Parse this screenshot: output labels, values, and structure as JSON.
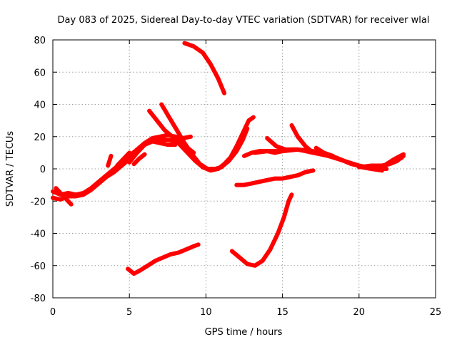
{
  "chart_data": {
    "type": "line",
    "title": "Day 083 of 2025, Sidereal Day-to-day VTEC variation (SDTVAR) for receiver wlal",
    "xlabel": "GPS time / hours",
    "ylabel": "SDTVAR / TECUs",
    "xlim": [
      0,
      25
    ],
    "ylim": [
      -80,
      80
    ],
    "xticks": [
      0,
      5,
      10,
      15,
      20,
      25
    ],
    "yticks": [
      -80,
      -60,
      -40,
      -20,
      0,
      20,
      40,
      60,
      80
    ],
    "grid": true,
    "legend": "none",
    "color": "#ff0000",
    "series": [
      {
        "points": [
          [
            0,
            -14
          ],
          [
            0.5,
            -16
          ],
          [
            1,
            -15
          ],
          [
            1.5,
            -16
          ],
          [
            2,
            -15
          ],
          [
            2.5,
            -12
          ],
          [
            3,
            -8
          ],
          [
            3.5,
            -4
          ],
          [
            4,
            0
          ],
          [
            4.5,
            4
          ],
          [
            5,
            8
          ],
          [
            5.5,
            12
          ]
        ]
      },
      {
        "points": [
          [
            0,
            -18
          ],
          [
            0.5,
            -19
          ],
          [
            1,
            -17
          ],
          [
            1.5,
            -17
          ],
          [
            2,
            -16
          ],
          [
            2.5,
            -13
          ],
          [
            3,
            -9
          ],
          [
            3.5,
            -5
          ],
          [
            4,
            -2
          ],
          [
            4.5,
            2
          ],
          [
            5,
            6
          ]
        ]
      },
      {
        "points": [
          [
            0.2,
            -12
          ],
          [
            0.7,
            -17
          ],
          [
            1.2,
            -22
          ]
        ]
      },
      {
        "points": [
          [
            3.6,
            2
          ],
          [
            3.8,
            8
          ]
        ]
      },
      {
        "points": [
          [
            4.2,
            2
          ],
          [
            4.6,
            6
          ],
          [
            5,
            10
          ]
        ]
      },
      {
        "points": [
          [
            5,
            4
          ],
          [
            5.5,
            10
          ],
          [
            6,
            15
          ],
          [
            6.5,
            17
          ],
          [
            7,
            16
          ],
          [
            7.5,
            15
          ],
          [
            8,
            15
          ]
        ]
      },
      {
        "points": [
          [
            5.5,
            12
          ],
          [
            6,
            16
          ],
          [
            6.5,
            19
          ],
          [
            7,
            20
          ],
          [
            7.5,
            21
          ],
          [
            8,
            20
          ],
          [
            8.5,
            19
          ],
          [
            9,
            20
          ]
        ]
      },
      {
        "points": [
          [
            6.2,
            17
          ],
          [
            6.8,
            18
          ],
          [
            7.5,
            18
          ],
          [
            8.2,
            17
          ],
          [
            8.8,
            13
          ],
          [
            9.2,
            10
          ]
        ]
      },
      {
        "points": [
          [
            5.3,
            3
          ],
          [
            5.6,
            6
          ],
          [
            6,
            9
          ]
        ]
      },
      {
        "points": [
          [
            6.3,
            36
          ],
          [
            6.8,
            30
          ],
          [
            7.3,
            24
          ],
          [
            7.8,
            20
          ],
          [
            8.3,
            15
          ],
          [
            8.8,
            10
          ],
          [
            9.3,
            5
          ],
          [
            9.8,
            1
          ],
          [
            10.3,
            -1
          ],
          [
            10.8,
            0
          ],
          [
            11.2,
            3
          ],
          [
            11.6,
            7
          ],
          [
            12,
            14
          ],
          [
            12.4,
            22
          ],
          [
            12.8,
            30
          ],
          [
            13.1,
            32
          ]
        ]
      },
      {
        "points": [
          [
            7.1,
            40
          ],
          [
            7.6,
            32
          ],
          [
            8.1,
            24
          ],
          [
            8.6,
            16
          ],
          [
            9.1,
            9
          ],
          [
            9.6,
            3
          ],
          [
            10.1,
            0
          ],
          [
            10.6,
            0
          ],
          [
            11,
            1
          ],
          [
            11.5,
            5
          ],
          [
            12,
            11
          ],
          [
            12.4,
            18
          ],
          [
            12.7,
            25
          ]
        ]
      },
      {
        "points": [
          [
            8.6,
            78
          ],
          [
            9.2,
            76
          ],
          [
            9.8,
            72
          ],
          [
            10.3,
            65
          ],
          [
            10.8,
            56
          ],
          [
            11.2,
            47
          ]
        ]
      },
      {
        "points": [
          [
            12.5,
            8
          ],
          [
            13,
            10
          ],
          [
            13.5,
            11
          ],
          [
            14,
            11
          ],
          [
            14.5,
            10
          ],
          [
            15,
            11
          ],
          [
            15.5,
            12
          ],
          [
            16,
            12
          ],
          [
            16.5,
            11
          ],
          [
            17,
            10
          ],
          [
            17.5,
            9
          ],
          [
            18,
            8
          ],
          [
            18.5,
            7
          ],
          [
            19,
            5
          ],
          [
            19.5,
            3
          ],
          [
            20,
            2
          ],
          [
            20.5,
            1
          ],
          [
            21,
            1
          ],
          [
            21.5,
            2
          ],
          [
            22,
            3
          ],
          [
            22.5,
            5
          ],
          [
            22.9,
            8
          ]
        ]
      },
      {
        "points": [
          [
            13.2,
            10
          ],
          [
            14,
            11
          ],
          [
            15,
            11
          ],
          [
            16,
            12
          ],
          [
            17,
            11
          ],
          [
            18,
            8
          ],
          [
            19,
            5
          ],
          [
            20,
            2
          ],
          [
            21,
            0
          ],
          [
            21.8,
            0
          ]
        ]
      },
      {
        "points": [
          [
            14,
            19
          ],
          [
            14.6,
            14
          ],
          [
            15.2,
            12
          ],
          [
            16,
            12
          ]
        ]
      },
      {
        "points": [
          [
            15.6,
            27
          ],
          [
            16,
            20
          ],
          [
            16.5,
            14
          ],
          [
            17,
            10
          ]
        ]
      },
      {
        "points": [
          [
            17.2,
            13
          ],
          [
            17.7,
            10
          ],
          [
            18.3,
            8
          ]
        ]
      },
      {
        "points": [
          [
            19,
            5
          ],
          [
            19.6,
            3
          ],
          [
            20.2,
            1
          ],
          [
            20.8,
            0
          ],
          [
            21.5,
            -1
          ]
        ]
      },
      {
        "points": [
          [
            20,
            1
          ],
          [
            20.8,
            2
          ],
          [
            21.6,
            2
          ],
          [
            22.2,
            4
          ],
          [
            22.8,
            7
          ]
        ]
      },
      {
        "points": [
          [
            21.8,
            3
          ],
          [
            22.3,
            6
          ],
          [
            22.9,
            9
          ]
        ]
      },
      {
        "points": [
          [
            12,
            -10
          ],
          [
            12.5,
            -10
          ],
          [
            13,
            -9
          ],
          [
            13.5,
            -8
          ],
          [
            14,
            -7
          ],
          [
            14.5,
            -6
          ],
          [
            15,
            -6
          ],
          [
            15.5,
            -5
          ],
          [
            16,
            -4
          ],
          [
            16.5,
            -2
          ],
          [
            17,
            -1
          ]
        ]
      },
      {
        "points": [
          [
            11.7,
            -51
          ],
          [
            12.2,
            -55
          ],
          [
            12.7,
            -59
          ],
          [
            13.2,
            -60
          ],
          [
            13.7,
            -57
          ],
          [
            14.2,
            -50
          ],
          [
            14.7,
            -40
          ],
          [
            15.1,
            -30
          ],
          [
            15.4,
            -20
          ],
          [
            15.6,
            -16
          ]
        ]
      },
      {
        "points": [
          [
            4.9,
            -62
          ],
          [
            5.3,
            -65
          ],
          [
            5.7,
            -63
          ],
          [
            6.2,
            -60
          ],
          [
            6.7,
            -57
          ],
          [
            7.2,
            -55
          ],
          [
            7.7,
            -53
          ],
          [
            8.2,
            -52
          ],
          [
            8.7,
            -50
          ],
          [
            9.2,
            -48
          ],
          [
            9.5,
            -47
          ]
        ]
      }
    ]
  }
}
